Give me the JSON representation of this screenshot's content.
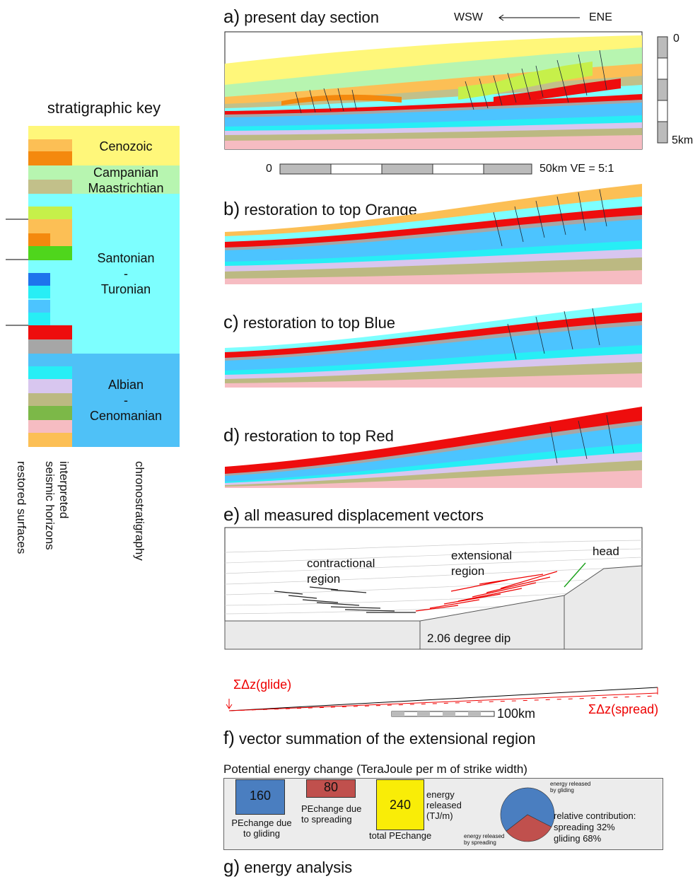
{
  "key": {
    "title": "stratigraphic key",
    "periods": [
      {
        "name": "Cenozoic"
      },
      {
        "name": "Campanian\nMaastrichtian"
      },
      {
        "name": "Santonian\n-\nTuronian"
      },
      {
        "name": "Albian\n-\nCenomanian"
      }
    ],
    "columns": [
      "restored surfaces",
      "interpreted\nseismic horizons",
      "chronostratigraphy"
    ]
  },
  "panels": {
    "a": {
      "letter": "a)",
      "title": "present day section",
      "dir_left": "WSW",
      "dir_right": "ENE"
    },
    "b": {
      "letter": "b)",
      "title": "restoration to top Orange"
    },
    "c": {
      "letter": "c)",
      "title": "restoration to top Blue"
    },
    "d": {
      "letter": "d)",
      "title": "restoration to top Red"
    },
    "e": {
      "letter": "e)",
      "title": "all measured displacement vectors",
      "contractional": "contractional\nregion",
      "extensional": "extensional\nregion",
      "head": "head",
      "dip": "2.06 degree dip"
    },
    "f": {
      "letter": "f)",
      "title": "vector summation of the extensional region",
      "glide": "ΣΔz(glide)",
      "spread": "ΣΔz(spread)",
      "scale": "100km"
    },
    "g": {
      "letter": "g)",
      "title": "energy analysis"
    }
  },
  "scales": {
    "depth_top": "0",
    "depth_bottom": "5km",
    "horiz_start": "0",
    "horiz_end": "50km VE = 5:1"
  },
  "energy": {
    "heading": "Potential energy change (TeraJoule per m of strike width)",
    "gliding_value": "160",
    "gliding_label": "PEchange due\nto gliding",
    "spreading_value": "80",
    "spreading_label": "PEchange due\nto spreading",
    "total_value": "240",
    "total_label": "total PEchange",
    "released_label": "energy\nreleased\n(TJ/m)",
    "pie_gliding_label": "energy released\nby gliding",
    "pie_spreading_label": "energy released\nby spreading",
    "contribution_title": "relative contribution:",
    "contribution_spreading": "spreading 32%",
    "contribution_gliding": "gliding 68%",
    "spreading_fraction": 0.32,
    "gliding_fraction": 0.68
  },
  "colors": {
    "yellow": "#fff77a",
    "orange": "#f7a33a",
    "lightorange": "#fcbf55",
    "campanian": "#b7f5b0",
    "olive": "#c2c08a",
    "lime": "#c6f04a",
    "green": "#4fd61c",
    "blue": "#1e74ec",
    "cyan": "#7dffff",
    "aqua": "#27eef5",
    "sky": "#4cc4ff",
    "albian": "#4fc1f7",
    "red": "#ee0d0d",
    "grey": "#a6a6a6",
    "lilac": "#d8c6ef",
    "khaki": "#bcb982",
    "dgreen": "#7cb848",
    "pink": "#f6bcc2",
    "glide": "#4a7ec0",
    "spread": "#c0504d",
    "total": "#f9ed07"
  }
}
